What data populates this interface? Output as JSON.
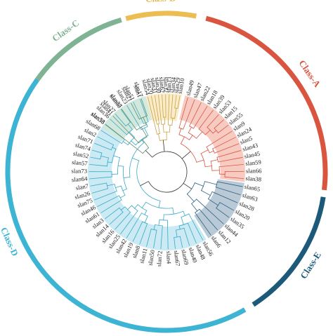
{
  "classes": [
    {
      "id": "A",
      "label": "Class-A",
      "ring_color": "#d9553f",
      "label_color": "#d9553f",
      "fill_color": "#f6c5bb",
      "branch_color": "#d9553f",
      "leaves": [
        "slan49",
        "slan47",
        "slan22",
        "slan18",
        "slan39",
        "slan53",
        "slan15",
        "slan55",
        "slan9",
        "slan24",
        "slan5",
        "slan43",
        "slan45",
        "slan59",
        "slan66",
        "slan38"
      ]
    },
    {
      "id": "E",
      "label": "Class-E",
      "ring_color": "#1d5a7a",
      "label_color": "#1d5a7a",
      "fill_color": "#b3c3d2",
      "branch_color": "#2b5f82",
      "leaves": [
        "slan65",
        "slan63",
        "slan28",
        "slan20",
        "slan35",
        "slan44",
        "slan12",
        "slan6"
      ]
    },
    {
      "id": "D",
      "label": "Class-D",
      "ring_color": "#3db4d3",
      "label_color": "#3db4d3",
      "fill_color": "#c5e8f2",
      "branch_color": "#38a9c8",
      "leaves": [
        "slan56",
        "slan48",
        "slan40",
        "slan69",
        "slan67",
        "slan4",
        "slan72",
        "slan50",
        "slan11",
        "slan8",
        "slan19",
        "slan42",
        "slan25",
        "slan16",
        "slan14",
        "slan3",
        "slan61",
        "slan46",
        "slan75",
        "slan26",
        "slan7",
        "slan64",
        "slan73",
        "slan57",
        "slan52",
        "slan74",
        "slan71",
        "slan2",
        "slan68",
        "slan33",
        "slan36",
        "slan27",
        "slan60",
        "slan23",
        "slan51",
        "slan1"
      ]
    },
    {
      "id": "C",
      "label": "Class-C",
      "ring_color": "#7fb392",
      "label_color": "#7fb392",
      "fill_color": "#d3e8da",
      "branch_color": "#5c8f6e",
      "leaves": [
        "slan58",
        "slan41",
        "slan37",
        "slan21",
        "slan17"
      ]
    },
    {
      "id": "B",
      "label": "Class-B",
      "ring_color": "#ecbd52",
      "label_color": "#e3b34a",
      "fill_color": "#faeac2",
      "branch_color": "#c9a24a",
      "leaves": [
        "slan54",
        "slan70",
        "slan31",
        "slan30",
        "slan62",
        "slan32",
        "slan13",
        "slan34",
        "slan29",
        "slan10"
      ]
    }
  ]
}
